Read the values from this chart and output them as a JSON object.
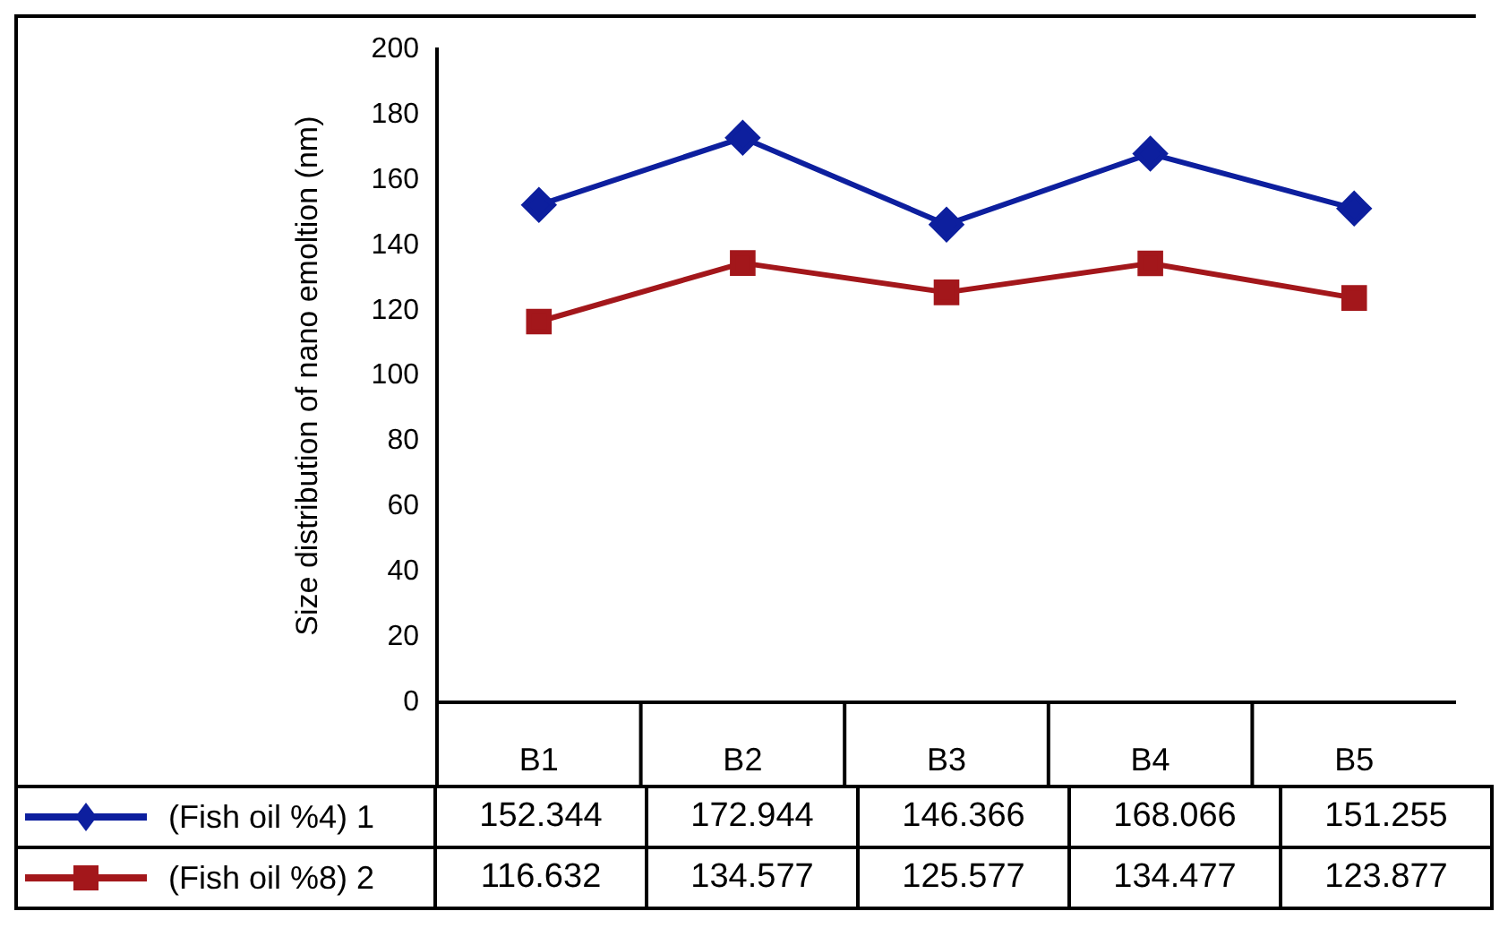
{
  "chart_data": {
    "type": "line",
    "ylabel": "Size distribution of nano emoltion (nm)",
    "categories": [
      "B1",
      "B2",
      "B3",
      "B4",
      "B5"
    ],
    "series": [
      {
        "name": "(Fish oil %4) 1",
        "color": "#0d1f9e",
        "marker": "diamond",
        "values": [
          152.344,
          172.944,
          146.366,
          168.066,
          151.255
        ]
      },
      {
        "name": "(Fish oil %8) 2",
        "color": "#a3171b",
        "marker": "square",
        "values": [
          116.632,
          134.577,
          125.577,
          134.477,
          123.877
        ]
      }
    ],
    "ylim": [
      0,
      200
    ],
    "yticks": [
      0,
      20,
      40,
      60,
      80,
      100,
      120,
      140,
      160,
      180,
      200
    ],
    "data_labels": true,
    "legend": "bottom"
  }
}
